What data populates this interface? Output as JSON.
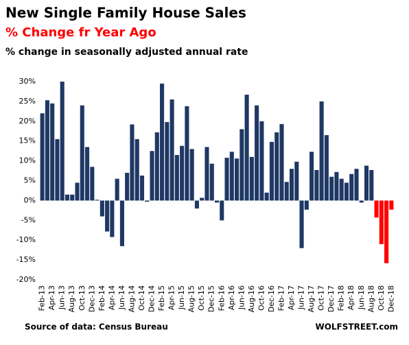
{
  "chart_data": {
    "type": "bar",
    "title": "New Single Family House Sales",
    "subtitle": "% Change fr Year Ago",
    "subtitle2": "% change in seasonally adjusted annual rate",
    "source": "Source of data: Census Bureau",
    "watermark": "WOLFSTREET.com",
    "categories": [
      "Feb-13",
      null,
      "Apr-13",
      null,
      "Jun-13",
      null,
      "Aug-13",
      null,
      "Oct-13",
      null,
      "Dec-13",
      null,
      "Feb-14",
      null,
      "Apr-14",
      null,
      "Jun-14",
      null,
      "Aug-14",
      null,
      "Oct-14",
      null,
      "Dec-14",
      null,
      "Feb-15",
      null,
      "Apr-15",
      null,
      "Jun-15",
      null,
      "Aug-15",
      null,
      "Oct-15",
      null,
      "Dec-15",
      null,
      "Feb-16",
      null,
      "Apr-16",
      null,
      "Jun-16",
      null,
      "Aug-16",
      null,
      "Oct-16",
      null,
      "Dec-16",
      null,
      "Feb-17",
      null,
      "Apr-17",
      null,
      "Jun-17",
      null,
      "Aug-17",
      null,
      "Oct-17",
      null,
      "Dec-17",
      null,
      "Feb-18",
      null,
      "Apr-18",
      null,
      "Jun-18",
      null,
      "Aug-18",
      null,
      "Oct-18",
      null,
      "Dec-18"
    ],
    "values": [
      22,
      25.3,
      24.5,
      15.5,
      30,
      1.5,
      1.5,
      4.5,
      24,
      13.5,
      8.5,
      0.2,
      -4,
      -7.8,
      -9.2,
      5.5,
      -11.5,
      7,
      19.2,
      15.5,
      6.3,
      -0.3,
      12.5,
      17.2,
      29.5,
      19.8,
      25.5,
      11.5,
      13.8,
      23.8,
      13,
      -2,
      0.7,
      13.5,
      9.3,
      -0.5,
      -5,
      10.8,
      12.3,
      10.6,
      18,
      26.7,
      11,
      24,
      20,
      2,
      14.8,
      17.2,
      19.3,
      4.7,
      8,
      9.8,
      -12,
      -2.3,
      12.3,
      7.7,
      25,
      16.5,
      6,
      7.2,
      5.5,
      4.5,
      6.7,
      8,
      -0.5,
      8.8,
      7.7,
      -4.3,
      -11,
      -15.8,
      -2.3
    ],
    "colors": [
      "#1f3864",
      "#1f3864",
      "#1f3864",
      "#1f3864",
      "#1f3864",
      "#1f3864",
      "#1f3864",
      "#1f3864",
      "#1f3864",
      "#1f3864",
      "#1f3864",
      "#1f3864",
      "#1f3864",
      "#1f3864",
      "#1f3864",
      "#1f3864",
      "#1f3864",
      "#1f3864",
      "#1f3864",
      "#1f3864",
      "#1f3864",
      "#1f3864",
      "#1f3864",
      "#1f3864",
      "#1f3864",
      "#1f3864",
      "#1f3864",
      "#1f3864",
      "#1f3864",
      "#1f3864",
      "#1f3864",
      "#1f3864",
      "#1f3864",
      "#1f3864",
      "#1f3864",
      "#1f3864",
      "#1f3864",
      "#1f3864",
      "#1f3864",
      "#1f3864",
      "#1f3864",
      "#1f3864",
      "#1f3864",
      "#1f3864",
      "#1f3864",
      "#1f3864",
      "#1f3864",
      "#1f3864",
      "#1f3864",
      "#1f3864",
      "#1f3864",
      "#1f3864",
      "#1f3864",
      "#1f3864",
      "#1f3864",
      "#1f3864",
      "#1f3864",
      "#1f3864",
      "#1f3864",
      "#1f3864",
      "#1f3864",
      "#1f3864",
      "#1f3864",
      "#1f3864",
      "#1f3864",
      "#1f3864",
      "#1f3864",
      "#ff0000",
      "#ff0000",
      "#ff0000",
      "#ff0000"
    ],
    "ylim": [
      -20,
      30
    ],
    "yticks": [
      {
        "value": -20,
        "label": "-20%"
      },
      {
        "value": -15,
        "label": "-15%"
      },
      {
        "value": -10,
        "label": "-10%"
      },
      {
        "value": -5,
        "label": "-5%"
      },
      {
        "value": 0,
        "label": "0%"
      },
      {
        "value": 5,
        "label": "5%"
      },
      {
        "value": 10,
        "label": "10%"
      },
      {
        "value": 15,
        "label": "15%"
      },
      {
        "value": 20,
        "label": "20%"
      },
      {
        "value": 25,
        "label": "25%"
      },
      {
        "value": 30,
        "label": "30%"
      }
    ],
    "grid": false
  }
}
